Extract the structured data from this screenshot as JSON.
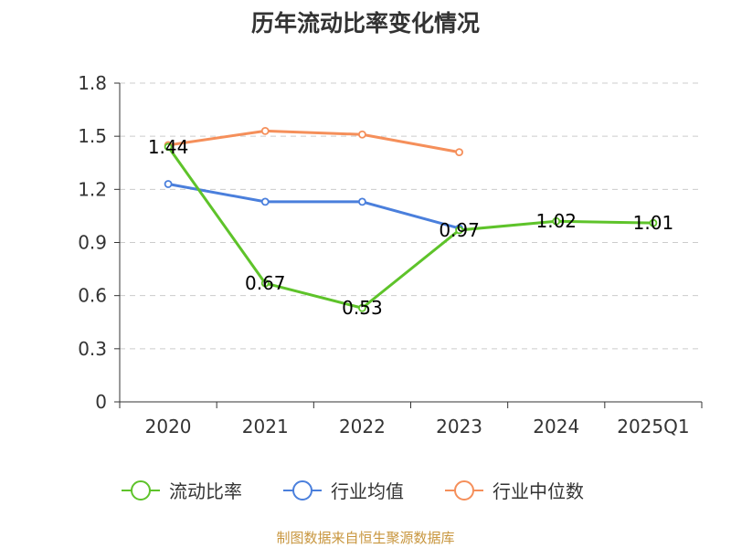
{
  "title": "历年流动比率变化情况",
  "source": "制图数据来自恒生聚源数据库",
  "chart_data": {
    "type": "line",
    "title": "历年流动比率变化情况",
    "categories": [
      "2020",
      "2021",
      "2022",
      "2023",
      "2024",
      "2025Q1"
    ],
    "ylim": [
      0,
      1.8
    ],
    "yticks": [
      "0",
      "0.3",
      "0.6",
      "0.9",
      "1.2",
      "1.5",
      "1.8"
    ],
    "grid": true,
    "legend_position": "bottom",
    "series": [
      {
        "name": "流动比率",
        "color": "#5ec32a",
        "values": [
          1.44,
          0.67,
          0.53,
          0.97,
          1.02,
          1.01
        ],
        "labels": [
          "1.44",
          "0.67",
          "0.53",
          "0.97",
          "1.02",
          "1.01"
        ]
      },
      {
        "name": "行业均值",
        "color": "#4a7fdc",
        "values": [
          1.23,
          1.13,
          1.13,
          0.98,
          null,
          null
        ]
      },
      {
        "name": "行业中位数",
        "color": "#f58f5a",
        "values": [
          1.45,
          1.53,
          1.51,
          1.41,
          null,
          null
        ]
      }
    ]
  }
}
